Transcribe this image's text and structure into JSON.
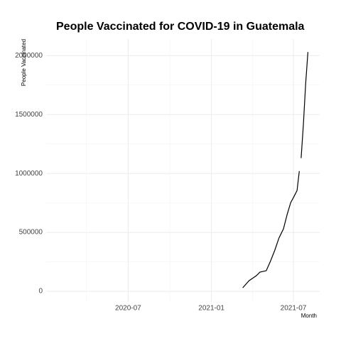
{
  "chart_data": {
    "type": "line",
    "title": "People Vaccinated for COVID-19 in Guatemala",
    "x_label": "Month",
    "y_label": "People Vaccinated",
    "x": [
      "2021-03-11",
      "2021-03-25",
      "2021-04-10",
      "2021-04-18",
      "2021-05-02",
      "2021-05-11",
      "2021-05-21",
      "2021-05-30",
      "2021-06-09",
      "2021-06-17",
      "2021-06-25",
      "2021-07-01",
      "2021-07-09",
      "2021-07-14",
      "2021-07-16",
      "2021-07-18",
      "2021-07-23",
      "2021-07-28",
      "2021-08-02"
    ],
    "series": [
      {
        "name": "People Vaccinated",
        "color": "#000000",
        "values": [
          30000,
          90000,
          132000,
          163000,
          175000,
          253000,
          350000,
          452000,
          530000,
          650000,
          753000,
          795000,
          855000,
          1020000,
          null,
          1130000,
          1415000,
          1760000,
          2030000
        ]
      }
    ],
    "xlim": [
      "2020-01-02",
      "2021-08-28"
    ],
    "xticks": [
      {
        "value": "2020-07-01",
        "label": "2020-07"
      },
      {
        "value": "2021-01-01",
        "label": "2021-01"
      },
      {
        "value": "2021-07-01",
        "label": "2021-07"
      }
    ],
    "ylim": [
      -90000,
      2140000
    ],
    "yticks": [
      0,
      500000,
      1000000,
      1500000,
      2000000
    ],
    "grid": true
  }
}
